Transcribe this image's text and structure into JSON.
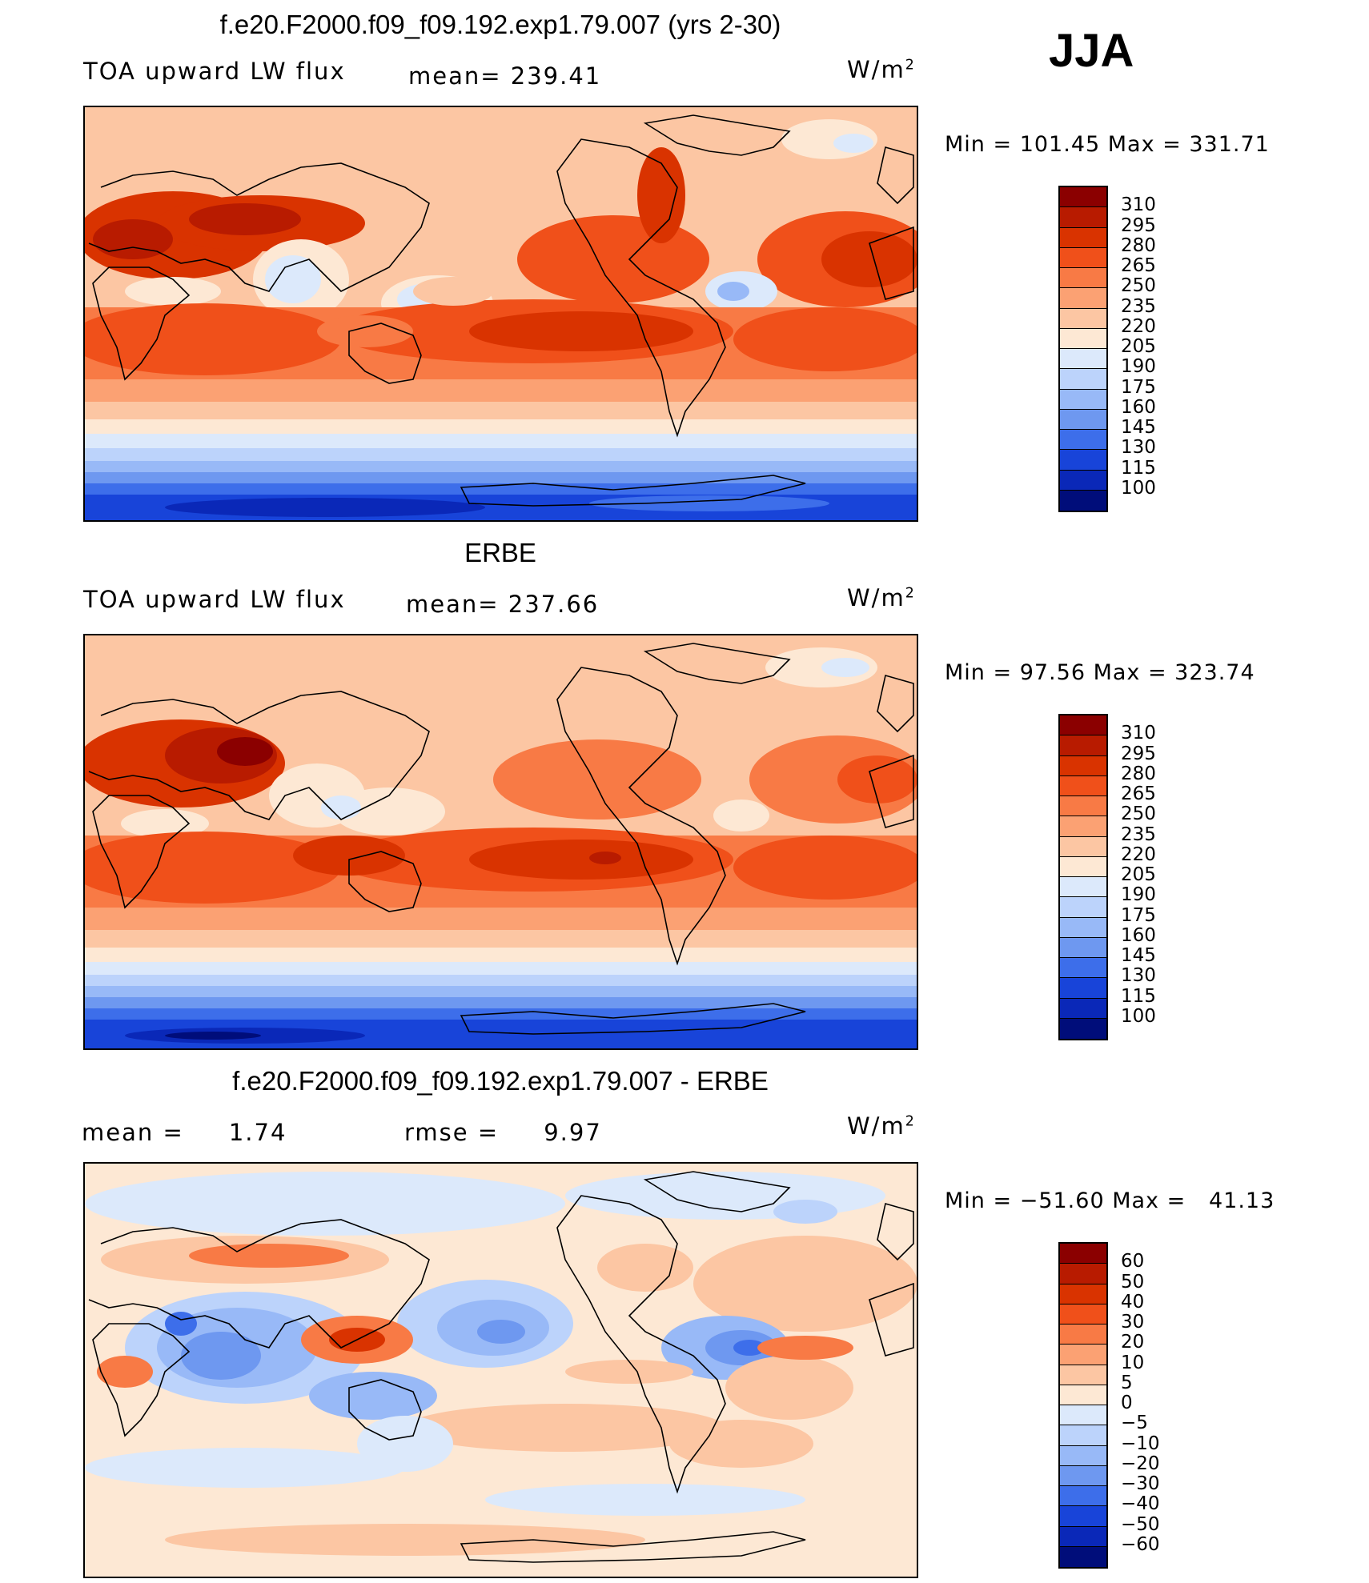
{
  "season": "JJA",
  "units": {
    "base": "W/m",
    "exp": "2"
  },
  "panels": [
    {
      "title": "f.e20.F2000.f09_f09.192.exp1.79.007 (yrs 2-30)",
      "left": "TOA upward LW flux",
      "center": "mean= 239.41",
      "minmax": "Min = 101.45 Max = 331.71",
      "labels": [
        "310",
        "295",
        "280",
        "265",
        "250",
        "235",
        "220",
        "205",
        "190",
        "175",
        "160",
        "145",
        "130",
        "115",
        "100"
      ],
      "colors": [
        "#8b0000",
        "#b81b00",
        "#d93300",
        "#f0501a",
        "#f87a45",
        "#fba173",
        "#fcc6a3",
        "#fde8d4",
        "#dce9fb",
        "#bcd3fb",
        "#98b9f7",
        "#6e98f0",
        "#3d6eea",
        "#1844d9",
        "#0a28b8",
        "#000d7a"
      ]
    },
    {
      "title": "ERBE",
      "left": "TOA upward LW flux",
      "center": "mean= 237.66",
      "minmax": "Min =  97.56 Max = 323.74",
      "labels": [
        "310",
        "295",
        "280",
        "265",
        "250",
        "235",
        "220",
        "205",
        "190",
        "175",
        "160",
        "145",
        "130",
        "115",
        "100"
      ],
      "colors": [
        "#8b0000",
        "#b81b00",
        "#d93300",
        "#f0501a",
        "#f87a45",
        "#fba173",
        "#fcc6a3",
        "#fde8d4",
        "#dce9fb",
        "#bcd3fb",
        "#98b9f7",
        "#6e98f0",
        "#3d6eea",
        "#1844d9",
        "#0a28b8",
        "#000d7a"
      ]
    },
    {
      "title": "f.e20.F2000.f09_f09.192.exp1.79.007 - ERBE",
      "left": "mean =     1.74",
      "center": "rmse =     9.97",
      "minmax": "Min = −51.60 Max =   41.13",
      "labels": [
        "60",
        "50",
        "40",
        "30",
        "20",
        "10",
        "5",
        "0",
        "−5",
        "−10",
        "−20",
        "−30",
        "−40",
        "−50",
        "−60"
      ],
      "colors": [
        "#8b0000",
        "#b81b00",
        "#d93300",
        "#f0501a",
        "#f87a45",
        "#fba173",
        "#fcc6a3",
        "#fde8d4",
        "#dce9fb",
        "#bcd3fb",
        "#98b9f7",
        "#6e98f0",
        "#3d6eea",
        "#1844d9",
        "#0a28b8",
        "#000d7a"
      ]
    }
  ]
}
